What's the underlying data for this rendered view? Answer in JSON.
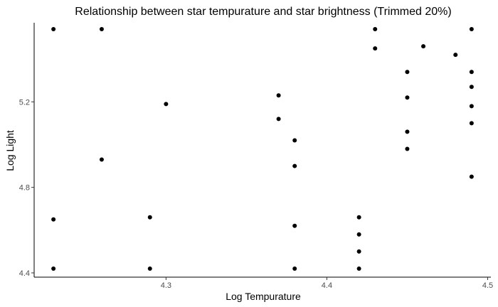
{
  "chart_data": {
    "type": "scatter",
    "title": "Relationship between star tempurature and star brightness (Trimmed 20%)",
    "xlabel": "Log Tempurature",
    "ylabel": "Log Light",
    "xlim": [
      4.218,
      4.502
    ],
    "ylim": [
      4.38,
      5.57
    ],
    "xticks": [
      4.3,
      4.4,
      4.5
    ],
    "xtick_labels": [
      "4.3",
      "4.4",
      "4.5"
    ],
    "yticks": [
      4.4,
      4.8,
      5.2
    ],
    "ytick_labels": [
      "4.4",
      "4.8",
      "5.2"
    ],
    "grid": false,
    "point_color": "#000000",
    "points": [
      {
        "x": 4.23,
        "y": 5.54
      },
      {
        "x": 4.26,
        "y": 5.54
      },
      {
        "x": 4.43,
        "y": 5.54
      },
      {
        "x": 4.49,
        "y": 5.54
      },
      {
        "x": 4.43,
        "y": 5.45
      },
      {
        "x": 4.46,
        "y": 5.46
      },
      {
        "x": 4.48,
        "y": 5.42
      },
      {
        "x": 4.45,
        "y": 5.34
      },
      {
        "x": 4.49,
        "y": 5.34
      },
      {
        "x": 4.49,
        "y": 5.27
      },
      {
        "x": 4.37,
        "y": 5.23
      },
      {
        "x": 4.45,
        "y": 5.22
      },
      {
        "x": 4.3,
        "y": 5.19
      },
      {
        "x": 4.49,
        "y": 5.18
      },
      {
        "x": 4.37,
        "y": 5.12
      },
      {
        "x": 4.49,
        "y": 5.1
      },
      {
        "x": 4.45,
        "y": 5.06
      },
      {
        "x": 4.38,
        "y": 5.02
      },
      {
        "x": 4.45,
        "y": 4.98
      },
      {
        "x": 4.26,
        "y": 4.93
      },
      {
        "x": 4.38,
        "y": 4.9
      },
      {
        "x": 4.49,
        "y": 4.85
      },
      {
        "x": 4.29,
        "y": 4.66
      },
      {
        "x": 4.42,
        "y": 4.66
      },
      {
        "x": 4.23,
        "y": 4.65
      },
      {
        "x": 4.38,
        "y": 4.62
      },
      {
        "x": 4.42,
        "y": 4.58
      },
      {
        "x": 4.42,
        "y": 4.5
      },
      {
        "x": 4.23,
        "y": 4.42
      },
      {
        "x": 4.29,
        "y": 4.42
      },
      {
        "x": 4.38,
        "y": 4.42
      },
      {
        "x": 4.42,
        "y": 4.42
      }
    ]
  }
}
